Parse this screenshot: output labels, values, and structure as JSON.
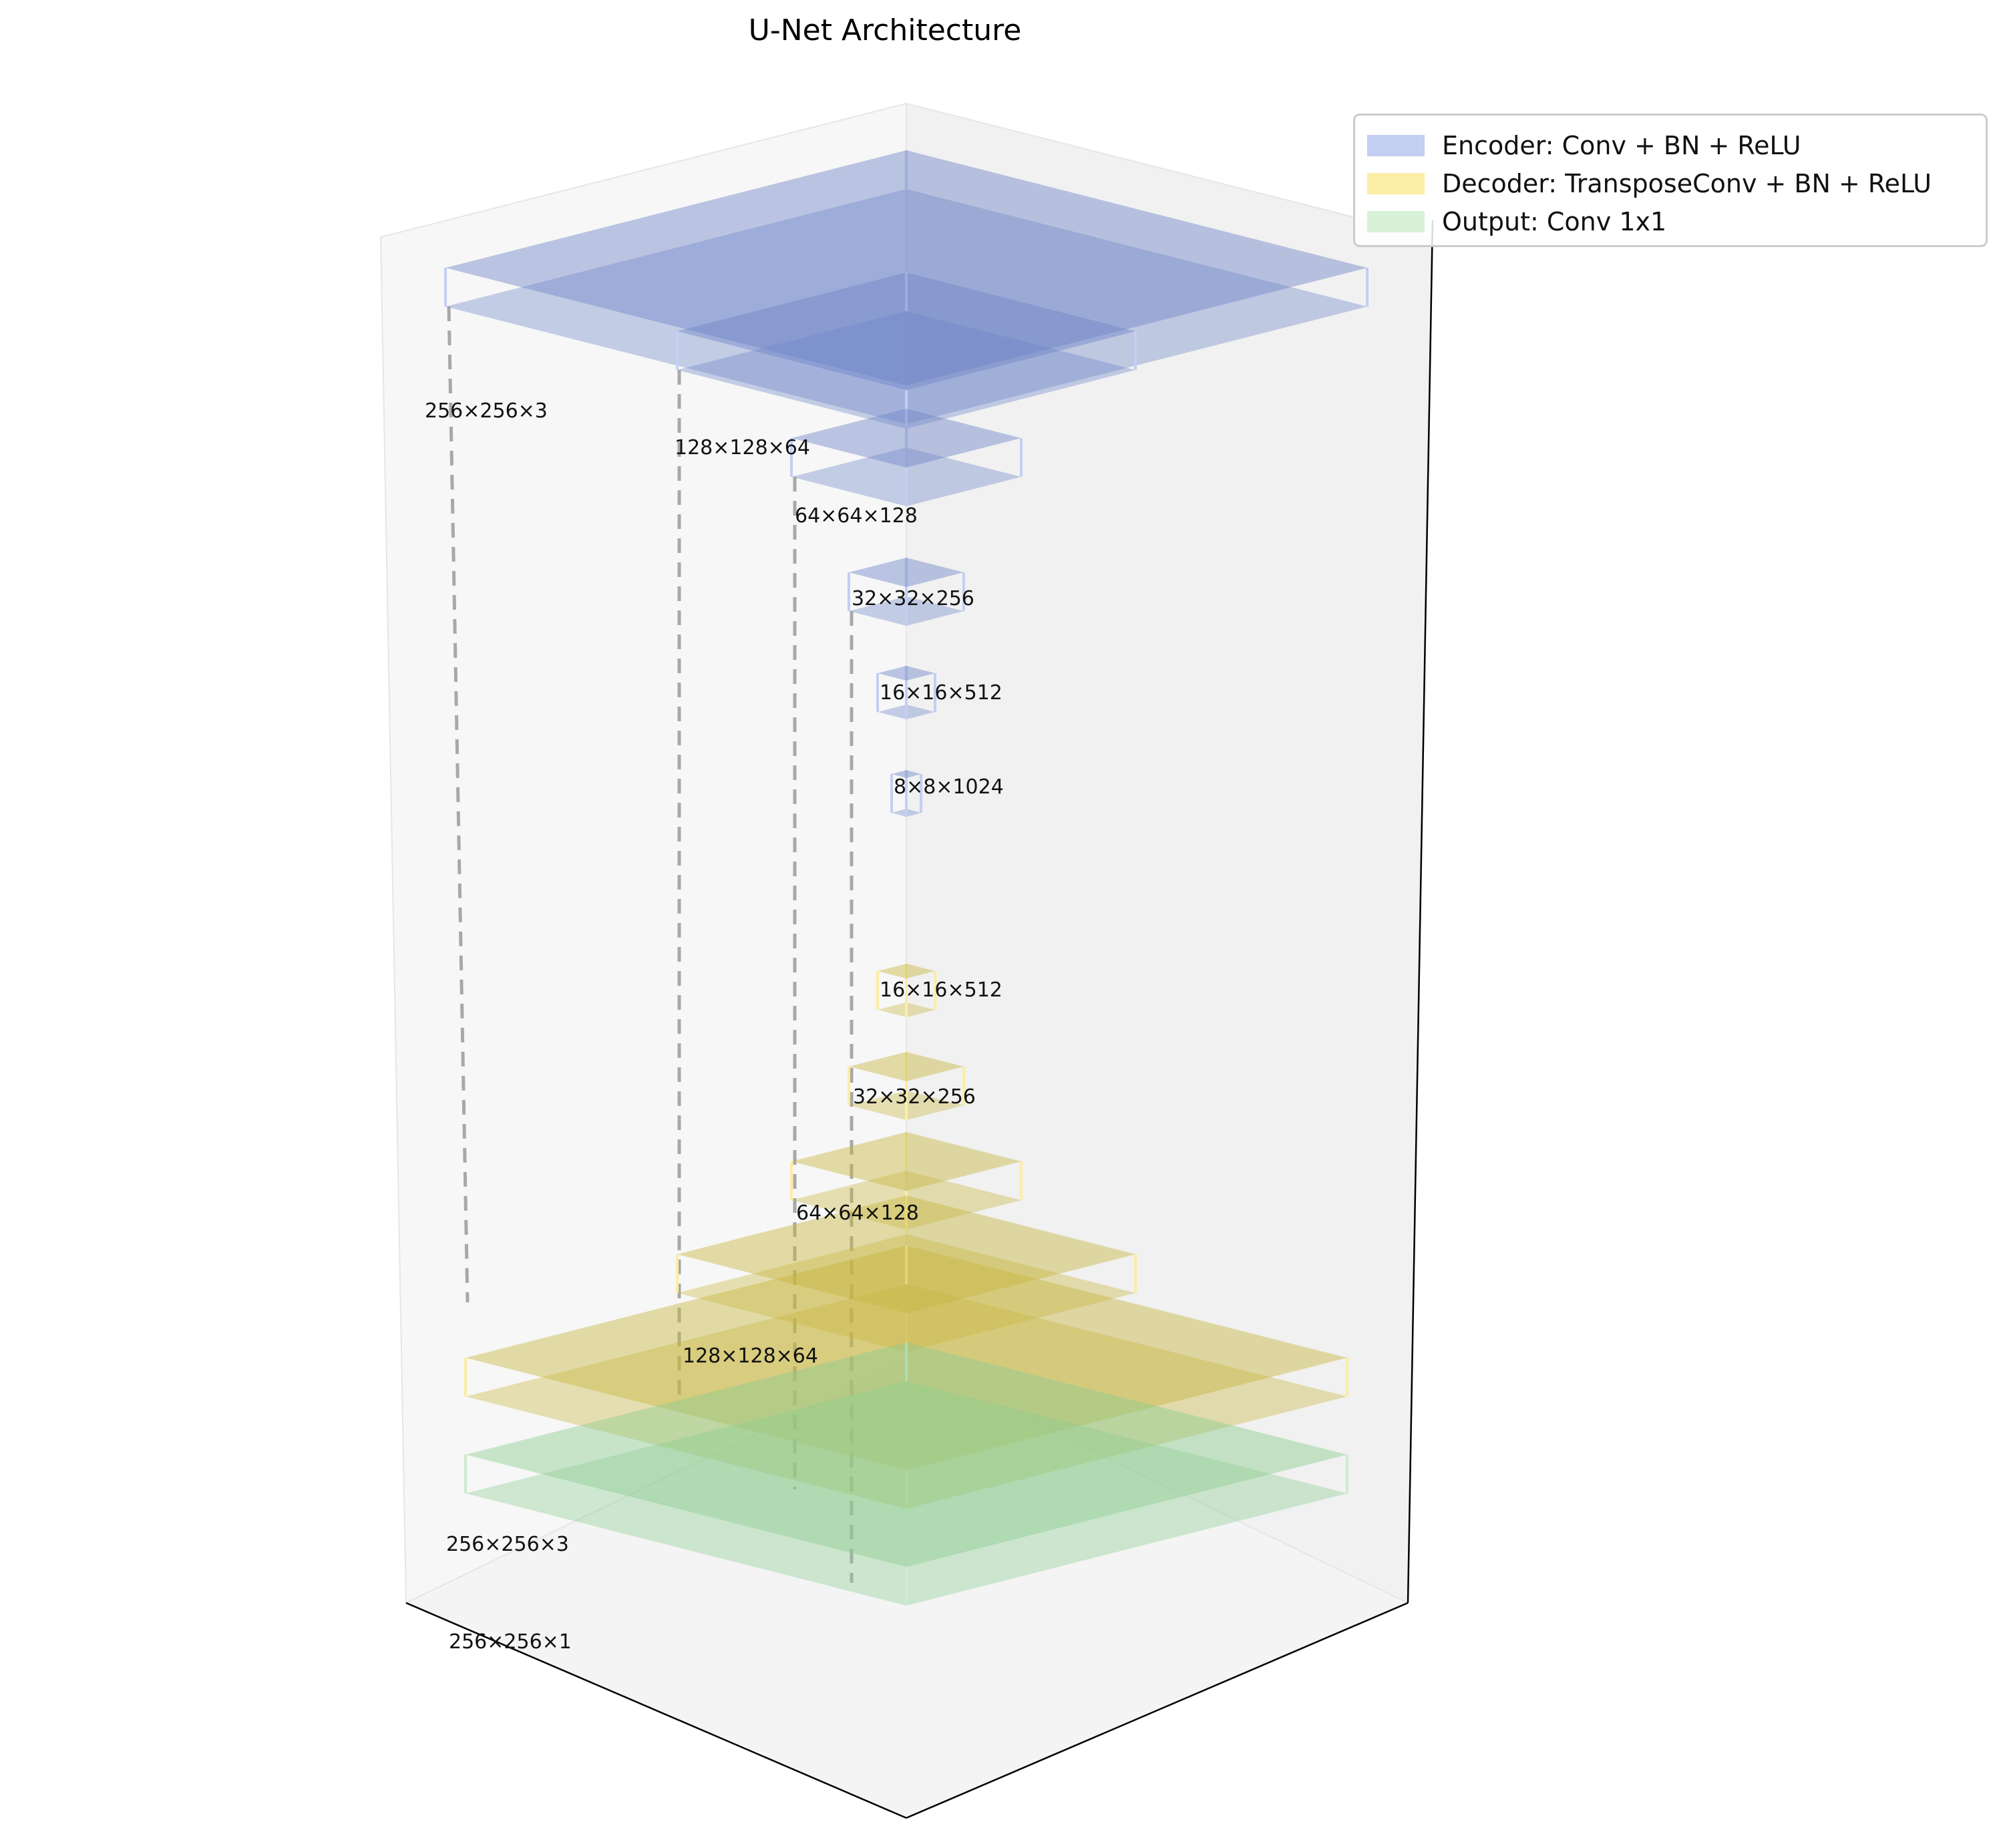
{
  "title": "U-Net Architecture",
  "legend": [
    {
      "label": "Encoder: Conv + BN + ReLU",
      "color": "#c3cff3"
    },
    {
      "label": "Decoder: TransposeConv + BN + ReLU",
      "color": "#fbeda6"
    },
    {
      "label": "Output: Conv 1x1",
      "color": "#d7f2d6"
    }
  ],
  "colors": {
    "encoder_fill": "#6e86c8",
    "encoder_edge": "#c3cff3",
    "decoder_fill": "#c8b640",
    "decoder_edge": "#fbeda6",
    "output_fill": "#8ccc90",
    "output_edge": "#cdeccf",
    "skip_line": "#a8a8a8"
  },
  "blocks": [
    {
      "role": "encoder",
      "label": "256×256×3"
    },
    {
      "role": "encoder",
      "label": "128×128×64"
    },
    {
      "role": "encoder",
      "label": "64×64×128"
    },
    {
      "role": "encoder",
      "label": "32×32×256"
    },
    {
      "role": "encoder",
      "label": "16×16×512"
    },
    {
      "role": "encoder",
      "label": "8×8×1024"
    },
    {
      "role": "decoder",
      "label": "16×16×512"
    },
    {
      "role": "decoder",
      "label": "32×32×256"
    },
    {
      "role": "decoder",
      "label": "64×64×128"
    },
    {
      "role": "decoder",
      "label": "128×128×64"
    },
    {
      "role": "decoder",
      "label": "256×256×3"
    },
    {
      "role": "output",
      "label": "256×256×1"
    }
  ]
}
